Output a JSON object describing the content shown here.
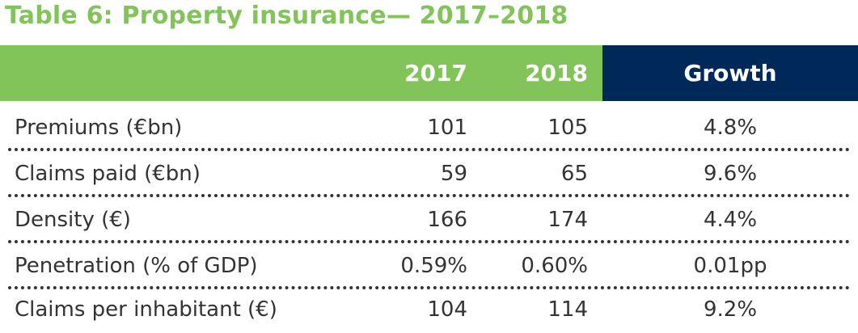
{
  "title": "Table 6: Property insurance— 2017–2018",
  "header": {
    "col_2017": "2017",
    "col_2018": "2018",
    "col_growth": "Growth"
  },
  "rows": [
    {
      "label": "Premiums (€bn)",
      "v2017": "101",
      "v2018": "105",
      "growth": "4.8%"
    },
    {
      "label": "Claims paid (€bn)",
      "v2017": "59",
      "v2018": "65",
      "growth": "9.6%"
    },
    {
      "label": "Density (€)",
      "v2017": "166",
      "v2018": "174",
      "growth": "4.4%"
    },
    {
      "label": "Penetration (% of GDP)",
      "v2017": "0.59%",
      "v2018": "0.60%",
      "growth": "0.01pp"
    },
    {
      "label": "Claims per inhabitant (€)",
      "v2017": "104",
      "v2018": "114",
      "growth": "9.2%"
    }
  ],
  "colors": {
    "title_green": "#82c35a",
    "header_green": "#82c35a",
    "header_navy": "#00295a"
  }
}
